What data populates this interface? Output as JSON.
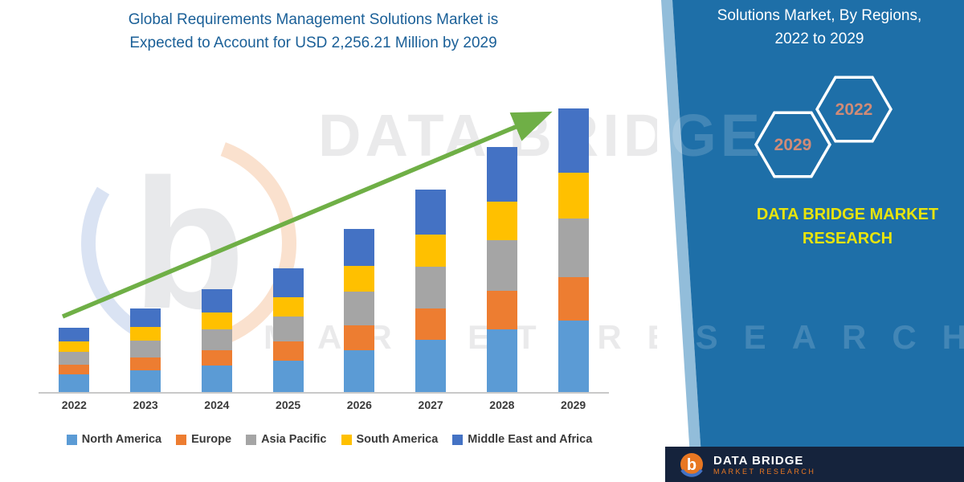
{
  "title": {
    "line1": "Global Requirements Management Solutions Market is",
    "line2": "Expected to Account for USD 2,256.21 Million by 2029",
    "color": "#1B6098"
  },
  "watermark": {
    "line1": "DATA BRIDGE",
    "line2": "MARKET RESEARCH"
  },
  "right_panel": {
    "heading_line1": "Solutions Market, By Regions,",
    "heading_line2": "2022 to 2029",
    "hexagons": [
      {
        "label": "2029"
      },
      {
        "label": "2022"
      }
    ],
    "brand_line1": "DATA BRIDGE MARKET",
    "brand_line2": "RESEARCH",
    "colors": {
      "panel_blue": "#1E6FA8",
      "stripe_blue": "#7FB2D4",
      "brand_yellow": "#E8E40C",
      "hexagon_year": "#D08B77",
      "hexagon_outline": "#FFFFFF"
    }
  },
  "footer_logo": {
    "brand": "DATA BRIDGE",
    "sub": "MARKET RESEARCH",
    "bar_color": "#15233C",
    "accent_orange": "#E87722"
  },
  "chart_data": {
    "type": "bar",
    "stacked": true,
    "title": "Global Requirements Management Solutions Market, USD Million",
    "xlabel": "",
    "ylabel": "",
    "unit": "USD Million",
    "ylim": [
      0,
      2400
    ],
    "grid": false,
    "legend_position": "bottom",
    "categories": [
      "2022",
      "2023",
      "2024",
      "2025",
      "2026",
      "2027",
      "2028",
      "2029"
    ],
    "series": [
      {
        "name": "North America",
        "color": "#5B9BD5",
        "values": [
          140,
          175,
          210,
          250,
          330,
          415,
          500,
          565
        ]
      },
      {
        "name": "Europe",
        "color": "#ED7D31",
        "values": [
          75,
          100,
          125,
          150,
          200,
          250,
          305,
          350
        ]
      },
      {
        "name": "Asia Pacific",
        "color": "#A5A5A5",
        "values": [
          105,
          135,
          165,
          200,
          265,
          330,
          400,
          465
        ]
      },
      {
        "name": "South America",
        "color": "#FFC000",
        "values": [
          80,
          105,
          130,
          155,
          205,
          255,
          310,
          360
        ]
      },
      {
        "name": "Middle East and Africa",
        "color": "#4472C4",
        "values": [
          110,
          150,
          190,
          225,
          295,
          360,
          435,
          516.21
        ]
      }
    ],
    "totals": [
      510,
      665,
      820,
      980,
      1295,
      1610,
      1950,
      2256.21
    ],
    "annotations": [
      "green upward trend arrow from 2022 bar to 2029 bar"
    ],
    "arrow_color": "#6FAF46"
  }
}
